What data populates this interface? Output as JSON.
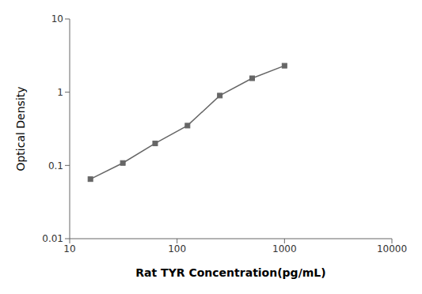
{
  "chart_data": {
    "type": "line",
    "x": [
      15.6,
      31.25,
      62.5,
      125,
      250,
      500,
      1000
    ],
    "values": [
      0.065,
      0.108,
      0.2,
      0.35,
      0.9,
      1.55,
      2.3
    ],
    "xlabel": "Rat TYR Concentration(pg/mL)",
    "ylabel": "Optical Density",
    "xlim": [
      10,
      10000
    ],
    "ylim": [
      0.01,
      10
    ],
    "xticks": [
      10,
      100,
      1000,
      10000
    ],
    "yticks": [
      0.01,
      0.1,
      1,
      10
    ],
    "log": true,
    "grid": false,
    "color": "#666666",
    "marker": "square"
  }
}
